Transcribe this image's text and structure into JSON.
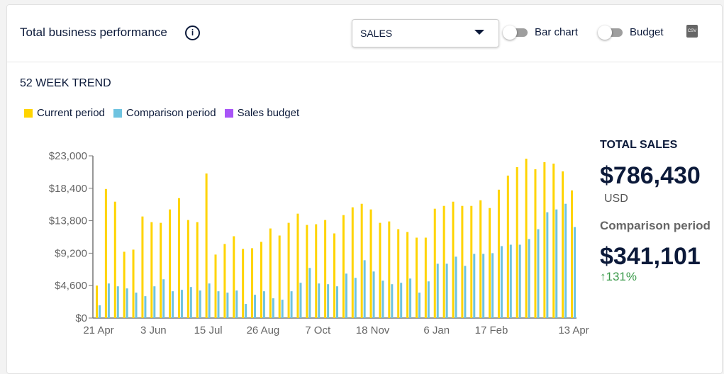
{
  "header": {
    "title": "Total business performance",
    "metric_select": "SALES",
    "toggle_bar_chart": "Bar chart",
    "toggle_budget": "Budget",
    "csv_label": "CSV"
  },
  "section_title": "52 WEEK TREND",
  "summary": {
    "total_label": "TOTAL SALES",
    "total_value": "$786,430",
    "currency": "USD",
    "comparison_label": "Comparison period",
    "comparison_value": "$341,101",
    "change": "131%",
    "change_color": "#3a9a4a"
  },
  "chart_data": {
    "type": "bar",
    "legend": [
      {
        "name": "Current period",
        "color": "#ffd400"
      },
      {
        "name": "Comparison period",
        "color": "#6ec3e0"
      },
      {
        "name": "Sales budget",
        "color": "#a855f7"
      }
    ],
    "ylim": [
      0,
      23000
    ],
    "yticks": [
      "$0",
      "$4,600",
      "$9,200",
      "$13,800",
      "$18,400",
      "$23,000"
    ],
    "xtick_labels": [
      {
        "i": 0,
        "label": "21 Apr"
      },
      {
        "i": 6,
        "label": "3 Jun"
      },
      {
        "i": 12,
        "label": "15 Jul"
      },
      {
        "i": 18,
        "label": "26 Aug"
      },
      {
        "i": 24,
        "label": "7 Oct"
      },
      {
        "i": 30,
        "label": "18 Nov"
      },
      {
        "i": 37,
        "label": "6 Jan"
      },
      {
        "i": 43,
        "label": "17 Feb"
      },
      {
        "i": 52,
        "label": "13 Apr"
      }
    ],
    "series": [
      {
        "name": "Current period",
        "values": [
          4600,
          18300,
          16500,
          9400,
          9700,
          14400,
          13600,
          13500,
          15400,
          17000,
          13900,
          13600,
          20500,
          9000,
          10500,
          11600,
          9800,
          9900,
          10800,
          12700,
          11700,
          13500,
          14800,
          13200,
          13300,
          13900,
          12000,
          14600,
          15700,
          16200,
          15400,
          13500,
          13700,
          12600,
          12200,
          11400,
          11400,
          15500,
          15900,
          16500,
          15900,
          15900,
          16700,
          15600,
          18200,
          20200,
          21400,
          22600,
          21100,
          22100,
          21900,
          20800,
          18100
        ]
      },
      {
        "name": "Comparison period",
        "values": [
          1800,
          4900,
          4500,
          4200,
          3600,
          3100,
          4500,
          5500,
          3800,
          4000,
          4400,
          3900,
          4900,
          3800,
          3600,
          3900,
          2000,
          3300,
          3800,
          2800,
          2600,
          3800,
          5000,
          7100,
          4900,
          4800,
          4500,
          6300,
          5700,
          8200,
          6600,
          5300,
          4800,
          5000,
          5600,
          3600,
          5200,
          7700,
          7700,
          8700,
          7400,
          9100,
          9100,
          9200,
          10200,
          10400,
          10400,
          11200,
          12600,
          15000,
          15400,
          16200,
          12900
        ]
      }
    ]
  }
}
